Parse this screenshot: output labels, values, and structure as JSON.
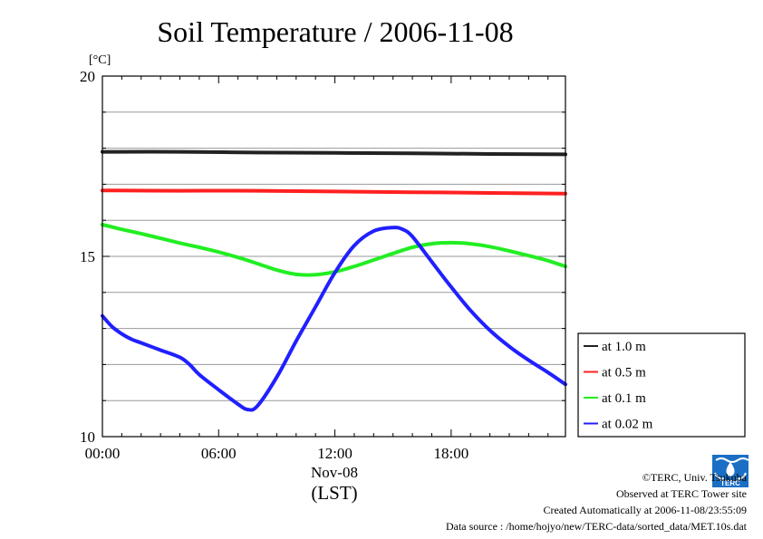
{
  "chart_data": {
    "type": "line",
    "title": "Soil Temperature / 2006-11-08",
    "ylabel": "[°C]",
    "xlabel": "(LST)",
    "date_label": "Nov-08",
    "ylim": [
      10,
      20
    ],
    "y_ticks": [
      "10",
      "15",
      "20"
    ],
    "xlim_hours": [
      0,
      23.9
    ],
    "x_ticks": [
      {
        "hour": 0,
        "label": "00:00"
      },
      {
        "hour": 6,
        "label": "06:00"
      },
      {
        "hour": 12,
        "label": "12:00"
      },
      {
        "hour": 18,
        "label": "18:00"
      }
    ],
    "grid": true,
    "legend_position": "right",
    "series": [
      {
        "name": "at 1.0 m",
        "color": "#222222",
        "x": [
          0,
          4,
          8,
          12,
          16,
          20,
          23.9
        ],
        "y": [
          17.9,
          17.9,
          17.88,
          17.87,
          17.86,
          17.84,
          17.83
        ]
      },
      {
        "name": "at 0.5 m",
        "color": "#ff2020",
        "x": [
          0,
          4,
          8,
          12,
          16,
          20,
          23.9
        ],
        "y": [
          16.83,
          16.82,
          16.82,
          16.8,
          16.78,
          16.76,
          16.74
        ]
      },
      {
        "name": "at 0.1 m",
        "color": "#22ee22",
        "x": [
          0,
          1,
          2,
          3,
          4,
          5,
          6,
          7,
          8,
          9,
          10,
          11,
          12,
          13,
          14,
          15,
          16,
          17,
          18,
          19,
          20,
          21,
          22,
          23,
          23.9
        ],
        "y": [
          15.88,
          15.75,
          15.63,
          15.5,
          15.37,
          15.25,
          15.12,
          14.97,
          14.8,
          14.62,
          14.5,
          14.49,
          14.57,
          14.72,
          14.9,
          15.08,
          15.25,
          15.35,
          15.38,
          15.35,
          15.27,
          15.15,
          15.02,
          14.88,
          14.72
        ]
      },
      {
        "name": "at 0.02 m",
        "color": "#2020ff",
        "x": [
          0,
          0.5,
          1,
          1.5,
          2,
          3,
          4,
          4.5,
          5,
          6,
          7,
          7.5,
          8,
          9,
          10,
          11,
          12,
          13,
          14,
          15,
          15.5,
          16,
          17,
          18,
          19,
          20,
          21,
          22,
          23,
          23.9
        ],
        "y": [
          13.35,
          13.05,
          12.85,
          12.7,
          12.6,
          12.4,
          12.2,
          12.0,
          11.72,
          11.3,
          10.9,
          10.75,
          10.85,
          11.65,
          12.65,
          13.6,
          14.55,
          15.3,
          15.7,
          15.8,
          15.75,
          15.55,
          14.85,
          14.15,
          13.5,
          12.95,
          12.5,
          12.12,
          11.78,
          11.45
        ]
      }
    ]
  },
  "footer": {
    "credit": "©TERC, Univ. Tsukuba",
    "site": "Observed at TERC Tower site",
    "created": "Created Automatically at 2006-11-08/23:55:09",
    "source": "Data source : /home/hojyo/new/TERC-data/sorted_data/MET.10s.dat",
    "logo_text": "TERC"
  }
}
